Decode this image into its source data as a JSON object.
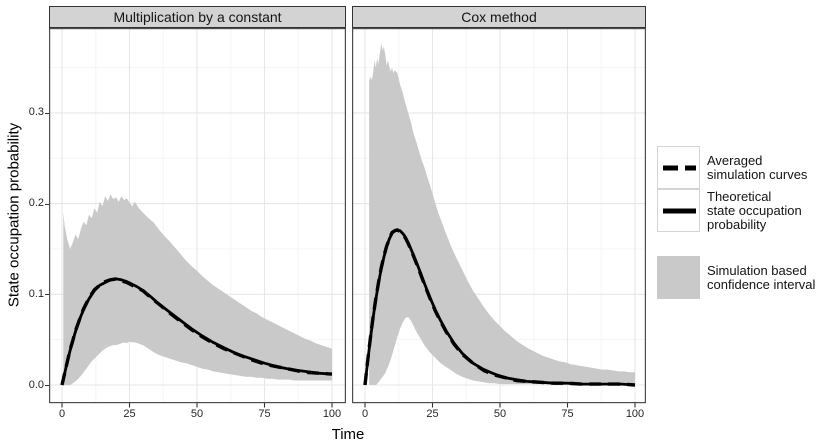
{
  "figure": {
    "x_axis_title": "Time",
    "y_axis_title": "State occupation probability"
  },
  "legend": {
    "items": [
      {
        "icon": "dashed-line-sample",
        "label": "Averaged\nsimulation curves"
      },
      {
        "icon": "solid-line-sample",
        "label": "Theoretical\nstate occupation\nprobability"
      },
      {
        "icon": "gray-ribbon-sample",
        "label": "Simulation based\nconfidence interval"
      }
    ]
  },
  "colors": {
    "line": "#000000",
    "ribbon": "#c9c9c9",
    "strip_bg": "#d3d3d3",
    "grid_major": "#e7e7e7",
    "grid_minor": "#f5f5f5",
    "panel_border": "#4d4d4d",
    "tick": "#333333"
  },
  "chart_data": {
    "type": "line",
    "title": "",
    "xlabel": "Time",
    "ylabel": "State occupation probability",
    "xlim": [
      0,
      100
    ],
    "ylim": [
      0,
      0.39
    ],
    "grid": "on",
    "legend_position": "right",
    "x_ticks": {
      "labels": [
        "0",
        "25",
        "50",
        "75",
        "100"
      ],
      "values": [
        0,
        25,
        50,
        75,
        100
      ]
    },
    "y_ticks": {
      "labels": [
        "0.0",
        "0.1",
        "0.2",
        "0.3"
      ],
      "values": [
        0,
        0.1,
        0.2,
        0.3
      ]
    },
    "facets": [
      {
        "title": "Multiplication by a constant",
        "ribbon": {
          "name": "Simulation based confidence interval",
          "t": [
            0.5,
            1,
            2,
            3,
            4,
            5,
            6,
            7,
            8,
            9,
            10,
            11,
            12,
            13,
            14,
            15,
            16,
            17,
            18,
            19,
            20,
            21,
            22,
            23,
            24,
            25,
            26,
            27,
            28,
            29,
            30,
            32,
            34,
            36,
            38,
            40,
            42,
            44,
            46,
            48,
            50,
            52,
            54,
            56,
            58,
            60,
            62,
            64,
            66,
            68,
            70,
            72,
            74,
            76,
            78,
            80,
            82,
            84,
            86,
            88,
            90,
            92,
            94,
            96,
            98,
            100
          ],
          "hi": [
            0.19,
            0.175,
            0.16,
            0.15,
            0.157,
            0.166,
            0.161,
            0.172,
            0.18,
            0.176,
            0.188,
            0.184,
            0.195,
            0.19,
            0.202,
            0.197,
            0.208,
            0.203,
            0.21,
            0.205,
            0.207,
            0.202,
            0.208,
            0.204,
            0.206,
            0.201,
            0.197,
            0.202,
            0.197,
            0.193,
            0.19,
            0.184,
            0.179,
            0.171,
            0.164,
            0.158,
            0.151,
            0.144,
            0.137,
            0.131,
            0.126,
            0.12,
            0.115,
            0.11,
            0.106,
            0.102,
            0.098,
            0.094,
            0.09,
            0.086,
            0.082,
            0.079,
            0.075,
            0.072,
            0.069,
            0.066,
            0.063,
            0.06,
            0.057,
            0.054,
            0.051,
            0.049,
            0.046,
            0.044,
            0.042,
            0.04
          ],
          "lo": [
            0.0,
            0.0,
            0.0,
            0.0,
            0.002,
            0.004,
            0.007,
            0.01,
            0.014,
            0.018,
            0.022,
            0.026,
            0.029,
            0.032,
            0.035,
            0.038,
            0.04,
            0.042,
            0.043,
            0.044,
            0.044,
            0.045,
            0.046,
            0.047,
            0.046,
            0.048,
            0.047,
            0.047,
            0.046,
            0.045,
            0.044,
            0.04,
            0.036,
            0.033,
            0.031,
            0.029,
            0.027,
            0.025,
            0.024,
            0.022,
            0.02,
            0.018,
            0.017,
            0.015,
            0.014,
            0.013,
            0.012,
            0.011,
            0.01,
            0.009,
            0.009,
            0.008,
            0.008,
            0.007,
            0.007,
            0.006,
            0.006,
            0.006,
            0.005,
            0.005,
            0.005,
            0.005,
            0.005,
            0.005,
            0.005,
            0.005
          ]
        },
        "series": [
          {
            "name": "Theoretical state occupation probability",
            "style": "solid",
            "t": [
              0,
              1,
              2,
              3,
              4,
              5,
              6,
              7,
              8,
              9,
              10,
              12,
              14,
              16,
              18,
              20,
              22,
              24,
              26,
              28,
              30,
              33,
              36,
              40,
              44,
              48,
              52,
              56,
              60,
              65,
              70,
              75,
              80,
              85,
              90,
              95,
              100
            ],
            "v": [
              0,
              0.013,
              0.026,
              0.038,
              0.049,
              0.059,
              0.068,
              0.076,
              0.083,
              0.089,
              0.095,
              0.104,
              0.11,
              0.113,
              0.116,
              0.117,
              0.116,
              0.114,
              0.111,
              0.108,
              0.104,
              0.097,
              0.089,
              0.08,
              0.071,
              0.062,
              0.054,
              0.047,
              0.041,
              0.034,
              0.029,
              0.024,
              0.02,
              0.017,
              0.015,
              0.013,
              0.012
            ]
          },
          {
            "name": "Averaged simulation curves",
            "style": "dashed",
            "t": [
              0,
              1,
              2,
              3,
              4,
              5,
              6,
              7,
              8,
              9,
              10,
              12,
              14,
              16,
              18,
              20,
              22,
              24,
              26,
              28,
              30,
              33,
              36,
              40,
              44,
              48,
              52,
              56,
              60,
              65,
              70,
              75,
              80,
              85,
              90,
              95,
              100
            ],
            "v": [
              0,
              0.013,
              0.026,
              0.039,
              0.049,
              0.06,
              0.068,
              0.077,
              0.084,
              0.09,
              0.096,
              0.105,
              0.11,
              0.114,
              0.116,
              0.117,
              0.115,
              0.113,
              0.11,
              0.107,
              0.104,
              0.096,
              0.089,
              0.079,
              0.07,
              0.061,
              0.053,
              0.046,
              0.04,
              0.034,
              0.028,
              0.023,
              0.02,
              0.017,
              0.014,
              0.013,
              0.012
            ]
          }
        ]
      },
      {
        "title": "Cox method",
        "ribbon": {
          "name": "Simulation based confidence interval",
          "t": [
            1.5,
            2,
            2.5,
            3,
            3.5,
            4,
            4.5,
            5,
            5.5,
            6,
            6.5,
            7,
            7.5,
            8,
            8.5,
            9,
            9.5,
            10,
            10.5,
            11,
            12,
            13,
            14,
            15,
            16,
            17,
            18,
            19,
            20,
            21,
            22,
            23,
            24,
            25,
            26,
            27,
            28,
            29,
            30,
            32,
            34,
            36,
            38,
            40,
            42,
            44,
            46,
            48,
            50,
            52,
            54,
            56,
            58,
            60,
            62,
            64,
            66,
            68,
            70,
            72,
            74,
            76,
            78,
            80,
            82,
            84,
            86,
            88,
            90,
            92,
            94,
            96,
            98,
            100
          ],
          "hi": [
            0.335,
            0.34,
            0.336,
            0.344,
            0.358,
            0.35,
            0.36,
            0.354,
            0.366,
            0.377,
            0.369,
            0.373,
            0.364,
            0.352,
            0.358,
            0.351,
            0.346,
            0.35,
            0.344,
            0.347,
            0.344,
            0.331,
            0.322,
            0.31,
            0.3,
            0.29,
            0.277,
            0.268,
            0.258,
            0.248,
            0.24,
            0.23,
            0.221,
            0.211,
            0.201,
            0.191,
            0.183,
            0.175,
            0.167,
            0.152,
            0.139,
            0.127,
            0.115,
            0.104,
            0.095,
            0.086,
            0.078,
            0.071,
            0.065,
            0.059,
            0.054,
            0.049,
            0.045,
            0.041,
            0.038,
            0.035,
            0.032,
            0.03,
            0.028,
            0.026,
            0.025,
            0.023,
            0.022,
            0.021,
            0.02,
            0.019,
            0.018,
            0.017,
            0.017,
            0.016,
            0.015,
            0.015,
            0.014,
            0.014
          ],
          "lo": [
            0.0,
            0.0,
            0.0,
            0.0,
            0.0,
            0.0,
            0.001,
            0.003,
            0.005,
            0.007,
            0.009,
            0.011,
            0.013,
            0.017,
            0.02,
            0.024,
            0.028,
            0.033,
            0.038,
            0.043,
            0.053,
            0.062,
            0.069,
            0.074,
            0.075,
            0.071,
            0.065,
            0.059,
            0.054,
            0.049,
            0.044,
            0.04,
            0.036,
            0.033,
            0.03,
            0.027,
            0.024,
            0.022,
            0.02,
            0.016,
            0.012,
            0.009,
            0.007,
            0.005,
            0.004,
            0.003,
            0.002,
            0.002,
            0.001,
            0.001,
            0.001,
            0.001,
            0.001,
            0.001,
            0.001,
            0.001,
            0.001,
            0.001,
            0.001,
            0.001,
            0.001,
            0.001,
            0.001,
            0.001,
            0.001,
            0.001,
            0.001,
            0.001,
            0.001,
            0.001,
            0.001,
            0.001,
            0.001,
            0.001
          ]
        },
        "series": [
          {
            "name": "Theoretical state occupation probability",
            "style": "solid",
            "t": [
              0,
              1,
              2,
              3,
              4,
              5,
              6,
              7,
              8,
              9,
              10,
              11,
              12,
              13,
              14,
              15,
              16,
              18,
              20,
              22,
              24,
              26,
              28,
              30,
              33,
              36,
              40,
              44,
              48,
              52,
              56,
              60,
              65,
              70,
              75,
              80,
              85,
              90,
              95,
              100
            ],
            "v": [
              0,
              0.026,
              0.051,
              0.074,
              0.094,
              0.112,
              0.128,
              0.141,
              0.152,
              0.161,
              0.167,
              0.17,
              0.171,
              0.17,
              0.167,
              0.163,
              0.157,
              0.143,
              0.128,
              0.112,
              0.097,
              0.083,
              0.071,
              0.06,
              0.046,
              0.035,
              0.024,
              0.017,
              0.012,
              0.008,
              0.006,
              0.004,
              0.003,
              0.002,
              0.002,
              0.001,
              0.001,
              0.001,
              0.001,
              0.0
            ]
          },
          {
            "name": "Averaged simulation curves",
            "style": "dashed",
            "t": [
              0,
              1,
              2,
              3,
              4,
              5,
              6,
              7,
              8,
              9,
              10,
              11,
              12,
              13,
              14,
              15,
              16,
              18,
              20,
              22,
              24,
              26,
              28,
              30,
              33,
              36,
              40,
              44,
              48,
              52,
              56,
              60,
              65,
              70,
              75,
              80,
              85,
              90,
              95,
              100
            ],
            "v": [
              0,
              0.027,
              0.052,
              0.075,
              0.095,
              0.113,
              0.129,
              0.142,
              0.153,
              0.161,
              0.168,
              0.17,
              0.171,
              0.169,
              0.166,
              0.162,
              0.156,
              0.142,
              0.127,
              0.111,
              0.096,
              0.082,
              0.07,
              0.059,
              0.045,
              0.034,
              0.024,
              0.016,
              0.011,
              0.008,
              0.005,
              0.004,
              0.003,
              0.002,
              0.002,
              0.001,
              0.001,
              0.001,
              0.001,
              0.0
            ]
          }
        ]
      }
    ]
  }
}
